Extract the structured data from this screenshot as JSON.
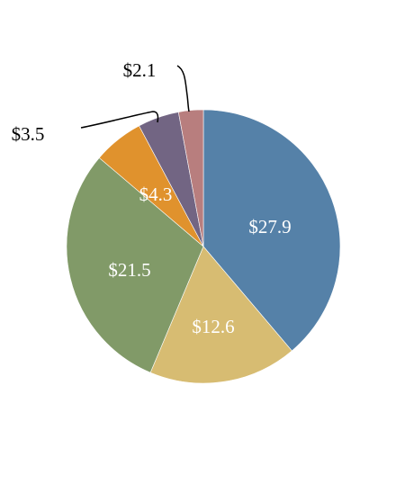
{
  "chart_data": {
    "type": "pie",
    "slices": [
      {
        "label": "$27.9",
        "value": 27.9,
        "color": "#5581A8"
      },
      {
        "label": "$12.6",
        "value": 12.6,
        "color": "#D7BC72"
      },
      {
        "label": "$21.5",
        "value": 21.5,
        "color": "#819A68"
      },
      {
        "label": "$4.3",
        "value": 4.3,
        "color": "#E0922D"
      },
      {
        "label": "$3.5",
        "value": 3.5,
        "color": "#726583"
      },
      {
        "label": "$2.1",
        "value": 2.1,
        "color": "#B87E7E"
      }
    ],
    "start_angle": "12 o'clock",
    "direction": "clockwise"
  }
}
